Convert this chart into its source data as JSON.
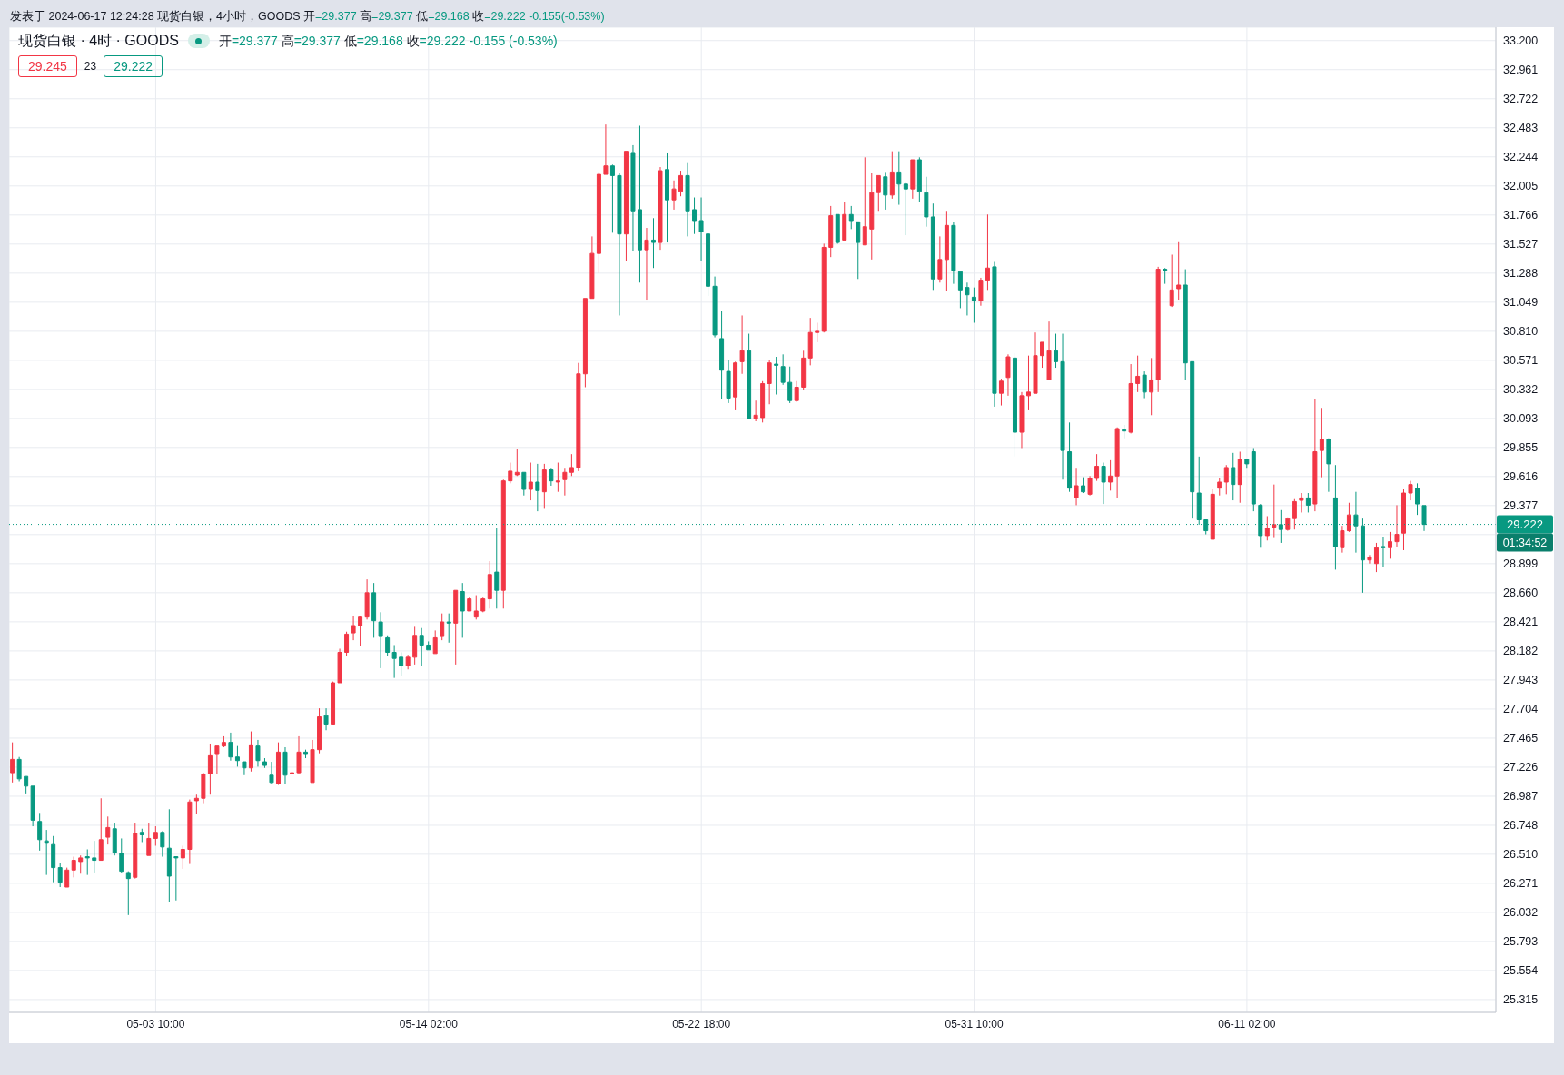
{
  "chart_data": {
    "type": "candlestick",
    "title": "现货白银 · 4时 · GOODS",
    "subtitle": "开=29.377 高=29.377 低=29.168 收=29.222 -0.155 (-0.53%)",
    "annotations": [
      "发表于 2024-06-17 12:24:28 现货白银，4小时，GOODS 开=29.377 高=29.377 低=29.168 收=29.222 -0.155(-0.53%)",
      "29.245",
      "23",
      "29.222",
      "01:34:52"
    ],
    "categories": [
      null,
      null,
      null,
      null,
      null,
      null,
      null,
      null,
      null,
      null,
      null,
      null,
      null,
      null,
      null,
      null,
      null,
      null,
      null,
      null,
      null,
      "05-03 10:00",
      null,
      null,
      null,
      null,
      null,
      null,
      null,
      null,
      null,
      null,
      null,
      null,
      null,
      null,
      null,
      null,
      null,
      null,
      null,
      null,
      null,
      null,
      null,
      null,
      null,
      null,
      null,
      null,
      null,
      null,
      null,
      null,
      null,
      null,
      null,
      null,
      null,
      null,
      null,
      "05-14 02:00",
      null,
      null,
      null,
      null,
      null,
      null,
      null,
      null,
      null,
      null,
      null,
      null,
      null,
      null,
      null,
      null,
      null,
      null,
      null,
      null,
      null,
      null,
      null,
      null,
      null,
      null,
      null,
      null,
      null,
      null,
      null,
      null,
      null,
      null,
      null,
      null,
      null,
      null,
      null,
      "05-22 18:00",
      null,
      null,
      null,
      null,
      null,
      null,
      null,
      null,
      null,
      null,
      null,
      null,
      null,
      null,
      null,
      null,
      null,
      null,
      null,
      null,
      null,
      null,
      null,
      null,
      null,
      null,
      null,
      null,
      null,
      null,
      null,
      null,
      null,
      null,
      null,
      null,
      null,
      null,
      null,
      "05-31 10:00",
      null,
      null,
      null,
      null,
      null,
      null,
      null,
      null,
      null,
      null,
      null,
      null,
      null,
      null,
      null,
      null,
      null,
      null,
      null,
      null,
      null,
      null,
      null,
      null,
      null,
      null,
      null,
      null,
      null,
      null,
      null,
      null,
      null,
      null,
      null,
      null,
      null,
      null,
      null,
      "06-11 02:00",
      null,
      null,
      null,
      null,
      null,
      null,
      null,
      null,
      null,
      null,
      null,
      null,
      null,
      null,
      null,
      null,
      null,
      null,
      null,
      null,
      null,
      null,
      null,
      null,
      null,
      null,
      null,
      null,
      null,
      null,
      null,
      null,
      null,
      null,
      null,
      null
    ],
    "ohlc": [
      [
        27.18,
        27.43,
        27.1,
        27.29
      ],
      [
        27.29,
        27.31,
        27.11,
        27.13
      ],
      [
        27.15,
        27.15,
        27.01,
        27.07
      ],
      [
        27.07,
        27.07,
        26.74,
        26.79
      ],
      [
        26.78,
        26.85,
        26.54,
        26.63
      ],
      [
        26.62,
        26.71,
        26.34,
        26.6
      ],
      [
        26.59,
        26.66,
        26.28,
        26.4
      ],
      [
        26.4,
        26.44,
        26.24,
        26.28
      ],
      [
        26.24,
        26.4,
        26.24,
        26.38
      ],
      [
        26.38,
        26.49,
        26.32,
        26.46
      ],
      [
        26.45,
        26.5,
        26.35,
        26.48
      ],
      [
        26.49,
        26.55,
        26.34,
        26.48
      ],
      [
        26.48,
        26.62,
        26.36,
        26.46
      ],
      [
        26.46,
        26.97,
        26.46,
        26.63
      ],
      [
        26.65,
        26.82,
        26.59,
        26.73
      ],
      [
        26.72,
        26.77,
        26.5,
        26.52
      ],
      [
        26.52,
        26.64,
        26.36,
        26.37
      ],
      [
        26.36,
        26.37,
        26.01,
        26.31
      ],
      [
        26.32,
        26.77,
        26.31,
        26.68
      ],
      [
        26.69,
        26.72,
        26.61,
        26.67
      ],
      [
        26.5,
        26.77,
        26.5,
        26.64
      ],
      [
        26.64,
        26.74,
        26.58,
        26.69
      ],
      [
        26.69,
        26.7,
        26.49,
        26.57
      ],
      [
        26.56,
        26.88,
        26.12,
        26.33
      ],
      [
        26.49,
        26.49,
        26.13,
        26.48
      ],
      [
        26.48,
        26.58,
        26.39,
        26.55
      ],
      [
        26.55,
        26.96,
        26.43,
        26.94
      ],
      [
        26.95,
        27.0,
        26.84,
        26.97
      ],
      [
        26.97,
        27.18,
        26.93,
        27.17
      ],
      [
        27.17,
        27.42,
        27.0,
        27.32
      ],
      [
        27.33,
        27.4,
        27.17,
        27.4
      ],
      [
        27.4,
        27.48,
        27.39,
        27.43
      ],
      [
        27.43,
        27.51,
        27.28,
        27.31
      ],
      [
        27.31,
        27.4,
        27.23,
        27.28
      ],
      [
        27.27,
        27.27,
        27.16,
        27.22
      ],
      [
        27.22,
        27.52,
        27.19,
        27.41
      ],
      [
        27.4,
        27.45,
        27.23,
        27.28
      ],
      [
        27.27,
        27.3,
        27.22,
        27.24
      ],
      [
        27.16,
        27.27,
        27.09,
        27.1
      ],
      [
        27.09,
        27.43,
        27.08,
        27.35
      ],
      [
        27.35,
        27.39,
        27.09,
        27.16
      ],
      [
        27.17,
        27.39,
        27.16,
        27.18
      ],
      [
        27.18,
        27.48,
        27.17,
        27.35
      ],
      [
        27.35,
        27.37,
        27.3,
        27.33
      ],
      [
        27.1,
        27.45,
        27.1,
        27.37
      ],
      [
        27.37,
        27.71,
        27.34,
        27.64
      ],
      [
        27.65,
        27.71,
        27.53,
        27.58
      ],
      [
        27.58,
        27.93,
        27.58,
        27.92
      ],
      [
        27.92,
        28.2,
        27.92,
        28.17
      ],
      [
        28.17,
        28.34,
        28.14,
        28.32
      ],
      [
        28.33,
        28.47,
        28.27,
        28.39
      ],
      [
        28.39,
        28.47,
        28.22,
        28.46
      ],
      [
        28.46,
        28.77,
        28.44,
        28.66
      ],
      [
        28.66,
        28.74,
        28.29,
        28.43
      ],
      [
        28.42,
        28.5,
        28.04,
        28.3
      ],
      [
        28.29,
        28.31,
        28.14,
        28.17
      ],
      [
        28.17,
        28.23,
        27.96,
        28.12
      ],
      [
        28.13,
        28.17,
        27.98,
        28.06
      ],
      [
        28.06,
        28.15,
        28.03,
        28.13
      ],
      [
        28.13,
        28.38,
        28.07,
        28.31
      ],
      [
        28.31,
        28.37,
        28.06,
        28.23
      ],
      [
        28.23,
        28.26,
        28.19,
        28.19
      ],
      [
        28.16,
        28.35,
        28.16,
        28.29
      ],
      [
        28.3,
        28.49,
        28.27,
        28.42
      ],
      [
        28.42,
        28.49,
        28.25,
        28.41
      ],
      [
        28.41,
        28.68,
        28.07,
        28.68
      ],
      [
        28.67,
        28.74,
        28.29,
        28.51
      ],
      [
        28.51,
        28.62,
        28.51,
        28.61
      ],
      [
        28.46,
        28.64,
        28.44,
        28.51
      ],
      [
        28.51,
        28.62,
        28.5,
        28.61
      ],
      [
        28.61,
        28.92,
        28.53,
        28.81
      ],
      [
        28.83,
        29.19,
        28.53,
        28.68
      ],
      [
        28.68,
        29.59,
        28.53,
        29.58
      ],
      [
        29.58,
        29.73,
        29.56,
        29.66
      ],
      [
        29.63,
        29.84,
        29.62,
        29.65
      ],
      [
        29.65,
        29.65,
        29.46,
        29.51
      ],
      [
        29.51,
        29.73,
        29.42,
        29.57
      ],
      [
        29.57,
        29.72,
        29.33,
        29.5
      ],
      [
        29.49,
        29.72,
        29.35,
        29.67
      ],
      [
        29.67,
        29.68,
        29.54,
        29.58
      ],
      [
        29.57,
        29.73,
        29.49,
        29.58
      ],
      [
        29.59,
        29.68,
        29.46,
        29.65
      ],
      [
        29.65,
        29.8,
        29.62,
        29.69
      ],
      [
        29.69,
        30.55,
        29.66,
        30.46
      ],
      [
        30.46,
        31.08,
        30.35,
        31.08
      ],
      [
        31.08,
        31.59,
        31.08,
        31.45
      ],
      [
        31.45,
        32.12,
        31.29,
        32.1
      ],
      [
        32.1,
        32.51,
        32.1,
        32.17
      ],
      [
        32.17,
        32.18,
        31.62,
        32.09
      ],
      [
        32.09,
        32.11,
        30.94,
        31.61
      ],
      [
        31.61,
        32.29,
        31.39,
        32.29
      ],
      [
        32.28,
        32.34,
        31.47,
        31.8
      ],
      [
        31.81,
        32.5,
        31.21,
        31.48
      ],
      [
        31.48,
        31.66,
        31.07,
        31.56
      ],
      [
        31.56,
        31.74,
        31.33,
        31.54
      ],
      [
        31.54,
        32.16,
        31.48,
        32.13
      ],
      [
        32.14,
        32.28,
        31.54,
        31.89
      ],
      [
        31.89,
        32.05,
        31.81,
        31.98
      ],
      [
        31.96,
        32.13,
        31.92,
        32.09
      ],
      [
        32.09,
        32.2,
        31.59,
        31.8
      ],
      [
        31.81,
        31.91,
        31.61,
        31.72
      ],
      [
        31.72,
        31.91,
        31.39,
        31.63
      ],
      [
        31.61,
        31.61,
        31.1,
        31.18
      ],
      [
        31.18,
        31.26,
        30.76,
        30.78
      ],
      [
        30.75,
        30.98,
        30.25,
        30.49
      ],
      [
        30.48,
        30.57,
        30.22,
        30.26
      ],
      [
        30.27,
        30.56,
        30.16,
        30.55
      ],
      [
        30.56,
        30.94,
        30.46,
        30.65
      ],
      [
        30.65,
        30.79,
        30.09,
        30.09
      ],
      [
        30.09,
        30.24,
        30.07,
        30.12
      ],
      [
        30.1,
        30.4,
        30.06,
        30.38
      ],
      [
        30.38,
        30.57,
        30.21,
        30.55
      ],
      [
        30.54,
        30.6,
        30.29,
        30.53
      ],
      [
        30.52,
        30.62,
        30.37,
        30.39
      ],
      [
        30.39,
        30.52,
        30.22,
        30.24
      ],
      [
        30.24,
        30.4,
        30.23,
        30.35
      ],
      [
        30.35,
        30.65,
        30.33,
        30.59
      ],
      [
        30.59,
        30.92,
        30.53,
        30.8
      ],
      [
        30.8,
        30.88,
        30.72,
        30.81
      ],
      [
        30.81,
        31.53,
        30.8,
        31.5
      ],
      [
        31.5,
        31.84,
        31.42,
        31.76
      ],
      [
        31.77,
        31.77,
        31.53,
        31.54
      ],
      [
        31.56,
        31.87,
        31.56,
        31.77
      ],
      [
        31.77,
        31.84,
        31.65,
        31.72
      ],
      [
        31.71,
        31.71,
        31.24,
        31.54
      ],
      [
        31.52,
        32.24,
        31.52,
        31.67
      ],
      [
        31.65,
        32.11,
        31.4,
        31.95
      ],
      [
        31.95,
        32.09,
        31.8,
        32.09
      ],
      [
        32.08,
        32.12,
        31.81,
        31.93
      ],
      [
        31.93,
        32.29,
        31.9,
        32.12
      ],
      [
        32.12,
        32.29,
        31.85,
        32.02
      ],
      [
        32.02,
        32.03,
        31.6,
        31.98
      ],
      [
        31.98,
        32.22,
        31.9,
        32.22
      ],
      [
        32.22,
        32.24,
        31.87,
        31.96
      ],
      [
        31.95,
        32.08,
        31.67,
        31.75
      ],
      [
        31.75,
        31.86,
        31.15,
        31.24
      ],
      [
        31.24,
        31.59,
        31.21,
        31.4
      ],
      [
        31.4,
        31.8,
        31.14,
        31.68
      ],
      [
        31.68,
        31.71,
        31.2,
        31.31
      ],
      [
        31.3,
        31.3,
        31.0,
        31.15
      ],
      [
        31.17,
        31.21,
        30.94,
        31.11
      ],
      [
        31.09,
        31.17,
        30.88,
        31.06
      ],
      [
        31.06,
        31.25,
        31.02,
        31.23
      ],
      [
        31.23,
        31.77,
        31.15,
        31.33
      ],
      [
        31.34,
        31.38,
        30.19,
        30.3
      ],
      [
        30.3,
        30.42,
        30.2,
        30.4
      ],
      [
        30.43,
        30.62,
        30.28,
        30.6
      ],
      [
        30.59,
        30.63,
        29.78,
        29.98
      ],
      [
        29.98,
        30.31,
        29.85,
        30.28
      ],
      [
        30.28,
        30.61,
        30.16,
        30.31
      ],
      [
        30.3,
        30.8,
        30.3,
        30.61
      ],
      [
        30.61,
        30.72,
        30.51,
        30.72
      ],
      [
        30.41,
        30.89,
        30.41,
        30.65
      ],
      [
        30.65,
        30.79,
        30.51,
        30.56
      ],
      [
        30.56,
        30.79,
        29.59,
        29.83
      ],
      [
        29.82,
        30.06,
        29.49,
        29.52
      ],
      [
        29.44,
        29.68,
        29.38,
        29.54
      ],
      [
        29.54,
        29.61,
        29.48,
        29.49
      ],
      [
        29.47,
        29.62,
        29.46,
        29.6
      ],
      [
        29.6,
        29.8,
        29.58,
        29.7
      ],
      [
        29.7,
        29.73,
        29.39,
        29.57
      ],
      [
        29.57,
        29.75,
        29.5,
        29.62
      ],
      [
        29.62,
        30.02,
        29.44,
        30.01
      ],
      [
        30.0,
        30.04,
        29.93,
        29.99
      ],
      [
        29.98,
        30.54,
        29.97,
        30.38
      ],
      [
        30.38,
        30.61,
        30.31,
        30.44
      ],
      [
        30.45,
        30.48,
        30.26,
        30.31
      ],
      [
        30.31,
        30.59,
        30.12,
        30.41
      ],
      [
        30.41,
        31.34,
        30.31,
        31.32
      ],
      [
        31.32,
        31.33,
        31.2,
        31.31
      ],
      [
        31.02,
        31.44,
        31.01,
        31.15
      ],
      [
        31.16,
        31.55,
        31.07,
        31.19
      ],
      [
        31.19,
        31.32,
        30.41,
        30.55
      ],
      [
        30.56,
        30.56,
        29.27,
        29.49
      ],
      [
        29.48,
        29.78,
        29.22,
        29.26
      ],
      [
        29.26,
        29.26,
        29.14,
        29.17
      ],
      [
        29.1,
        29.51,
        29.1,
        29.47
      ],
      [
        29.52,
        29.6,
        29.46,
        29.57
      ],
      [
        29.57,
        29.71,
        29.47,
        29.69
      ],
      [
        29.69,
        29.81,
        29.42,
        29.55
      ],
      [
        29.55,
        29.82,
        29.4,
        29.76
      ],
      [
        29.76,
        29.76,
        29.68,
        29.72
      ],
      [
        29.82,
        29.85,
        29.33,
        29.39
      ],
      [
        29.38,
        29.39,
        29.03,
        29.13
      ],
      [
        29.13,
        29.29,
        29.09,
        29.19
      ],
      [
        29.2,
        29.55,
        29.11,
        29.22
      ],
      [
        29.22,
        29.34,
        29.07,
        29.18
      ],
      [
        29.18,
        29.28,
        29.17,
        29.27
      ],
      [
        29.27,
        29.43,
        29.18,
        29.41
      ],
      [
        29.42,
        29.48,
        29.32,
        29.44
      ],
      [
        29.44,
        29.48,
        29.32,
        29.38
      ],
      [
        29.39,
        30.25,
        29.33,
        29.82
      ],
      [
        29.83,
        30.18,
        29.61,
        29.92
      ],
      [
        29.92,
        29.93,
        29.49,
        29.72
      ],
      [
        29.44,
        29.71,
        28.85,
        29.04
      ],
      [
        29.03,
        29.21,
        28.99,
        29.17
      ],
      [
        29.17,
        29.4,
        29.16,
        29.3
      ],
      [
        29.3,
        29.49,
        28.99,
        29.21
      ],
      [
        29.21,
        29.27,
        28.66,
        28.93
      ],
      [
        28.93,
        28.97,
        28.9,
        28.95
      ],
      [
        28.9,
        29.07,
        28.83,
        29.03
      ],
      [
        29.04,
        29.12,
        28.87,
        29.03
      ],
      [
        29.03,
        29.16,
        28.94,
        29.08
      ],
      [
        29.08,
        29.38,
        29.04,
        29.14
      ],
      [
        29.15,
        29.51,
        29.01,
        29.48
      ],
      [
        29.48,
        29.58,
        29.42,
        29.55
      ],
      [
        29.52,
        29.56,
        29.3,
        29.39
      ],
      [
        29.377,
        29.377,
        29.168,
        29.222
      ],
      null,
      null,
      null,
      null,
      null,
      null,
      null,
      null,
      null,
      null
    ],
    "colors": [
      "#f23645",
      "#089981",
      "#089981",
      "#089981",
      "#089981",
      "#089981",
      "#089981",
      "#089981",
      "#f23645",
      "#f23645",
      "#f23645",
      "#089981",
      "#089981",
      "#f23645",
      "#f23645",
      "#089981",
      "#089981",
      "#089981",
      "#f23645",
      "#089981",
      "#f23645",
      "#f23645",
      "#089981",
      "#089981",
      "#089981",
      "#f23645",
      "#f23645",
      "#f23645",
      "#f23645",
      "#f23645",
      "#f23645",
      "#f23645",
      "#089981",
      "#089981",
      "#089981",
      "#f23645",
      "#089981",
      "#089981",
      "#089981",
      "#f23645",
      "#089981",
      "#f23645",
      "#f23645",
      "#089981",
      "#f23645",
      "#f23645",
      "#089981",
      "#f23645",
      "#f23645",
      "#f23645",
      "#f23645",
      "#f23645",
      "#f23645",
      "#089981",
      "#089981",
      "#089981",
      "#089981",
      "#089981",
      "#f23645",
      "#f23645",
      "#089981",
      "#089981",
      "#f23645",
      "#f23645",
      "#089981",
      "#f23645",
      "#089981",
      "#f23645",
      "#f23645",
      "#f23645",
      "#f23645",
      "#089981",
      "#f23645",
      "#f23645",
      "#f23645",
      "#089981",
      "#f23645",
      "#089981",
      "#f23645",
      "#089981",
      "#f23645",
      "#f23645",
      "#f23645",
      "#f23645",
      "#f23645",
      "#f23645",
      "#f23645",
      "#f23645",
      "#089981",
      "#089981",
      "#f23645",
      "#089981",
      "#089981",
      "#f23645",
      "#089981",
      "#f23645",
      "#089981",
      "#f23645",
      "#f23645",
      "#089981",
      "#089981",
      "#089981",
      "#089981",
      "#089981",
      "#089981",
      "#089981",
      "#f23645",
      "#f23645",
      "#089981",
      "#f23645",
      "#f23645",
      "#f23645",
      "#089981",
      "#089981",
      "#089981",
      "#f23645",
      "#f23645",
      "#f23645",
      "#f23645",
      "#f23645",
      "#f23645",
      "#089981",
      "#f23645",
      "#089981",
      "#089981",
      "#f23645",
      "#f23645",
      "#f23645",
      "#089981",
      "#f23645",
      "#089981",
      "#089981",
      "#f23645",
      "#089981",
      "#089981",
      "#089981",
      "#f23645",
      "#f23645",
      "#089981",
      "#089981",
      "#089981",
      "#089981",
      "#f23645",
      "#f23645",
      "#089981",
      "#f23645",
      "#f23645",
      "#089981",
      "#f23645",
      "#f23645",
      "#f23645",
      "#f23645",
      "#f23645",
      "#089981",
      "#089981",
      "#089981",
      "#f23645",
      "#089981",
      "#f23645",
      "#f23645",
      "#089981",
      "#f23645",
      "#f23645",
      "#089981",
      "#f23645",
      "#f23645",
      "#089981",
      "#f23645",
      "#f23645",
      "#089981",
      "#f23645",
      "#f23645",
      "#089981",
      "#089981",
      "#089981",
      "#089981",
      "#f23645",
      "#f23645",
      "#f23645",
      "#089981",
      "#f23645",
      "#089981",
      "#089981",
      "#089981",
      "#f23645",
      "#f23645",
      "#089981",
      "#f23645",
      "#f23645",
      "#f23645",
      "#089981",
      "#f23645",
      "#f23645",
      "#089981",
      "#089981",
      "#f23645",
      "#f23645",
      "#089981",
      "#089981",
      "#f23645",
      "#f23645",
      "#089981",
      "#f23645",
      "#f23645",
      "#f23645",
      "#f23645",
      "#089981",
      "#089981",
      null,
      null,
      null,
      null,
      null,
      null,
      null,
      null,
      null,
      null
    ],
    "ylim": [
      25.21,
      33.31
    ],
    "yticks": [
      {
        "value": 25.315,
        "label": "25.315"
      },
      {
        "value": 25.554,
        "label": "25.554"
      },
      {
        "value": 25.793,
        "label": "25.793"
      },
      {
        "value": 26.032,
        "label": "26.032"
      },
      {
        "value": 26.271,
        "label": "26.271"
      },
      {
        "value": 26.51,
        "label": "26.510"
      },
      {
        "value": 26.748,
        "label": "26.748"
      },
      {
        "value": 26.987,
        "label": "26.987"
      },
      {
        "value": 27.226,
        "label": "27.226"
      },
      {
        "value": 27.465,
        "label": "27.465"
      },
      {
        "value": 27.704,
        "label": "27.704"
      },
      {
        "value": 27.943,
        "label": "27.943"
      },
      {
        "value": 28.182,
        "label": "28.182"
      },
      {
        "value": 28.421,
        "label": "28.421"
      },
      {
        "value": 28.66,
        "label": "28.660"
      },
      {
        "value": 28.899,
        "label": "28.899"
      },
      {
        "value": 29.138,
        "label": null
      },
      {
        "value": 29.377,
        "label": "29.377"
      },
      {
        "value": 29.616,
        "label": "29.616"
      },
      {
        "value": 29.855,
        "label": "29.855"
      },
      {
        "value": 30.093,
        "label": "30.093"
      },
      {
        "value": 30.332,
        "label": "30.332"
      },
      {
        "value": 30.571,
        "label": "30.571"
      },
      {
        "value": 30.81,
        "label": "30.810"
      },
      {
        "value": 31.049,
        "label": "31.049"
      },
      {
        "value": 31.288,
        "label": "31.288"
      },
      {
        "value": 31.527,
        "label": "31.527"
      },
      {
        "value": 31.766,
        "label": "31.766"
      },
      {
        "value": 32.005,
        "label": "32.005"
      },
      {
        "value": 32.244,
        "label": "32.244"
      },
      {
        "value": 32.483,
        "label": "32.483"
      },
      {
        "value": 32.722,
        "label": "32.722"
      },
      {
        "value": 32.961,
        "label": "32.961"
      },
      {
        "value": 33.2,
        "label": "33.200"
      }
    ],
    "grid": true,
    "ref_lines": [
      {
        "axis": "y",
        "value": 29.222,
        "label": "29.222",
        "color": "#089981",
        "line_style": "dotted"
      }
    ]
  }
}
